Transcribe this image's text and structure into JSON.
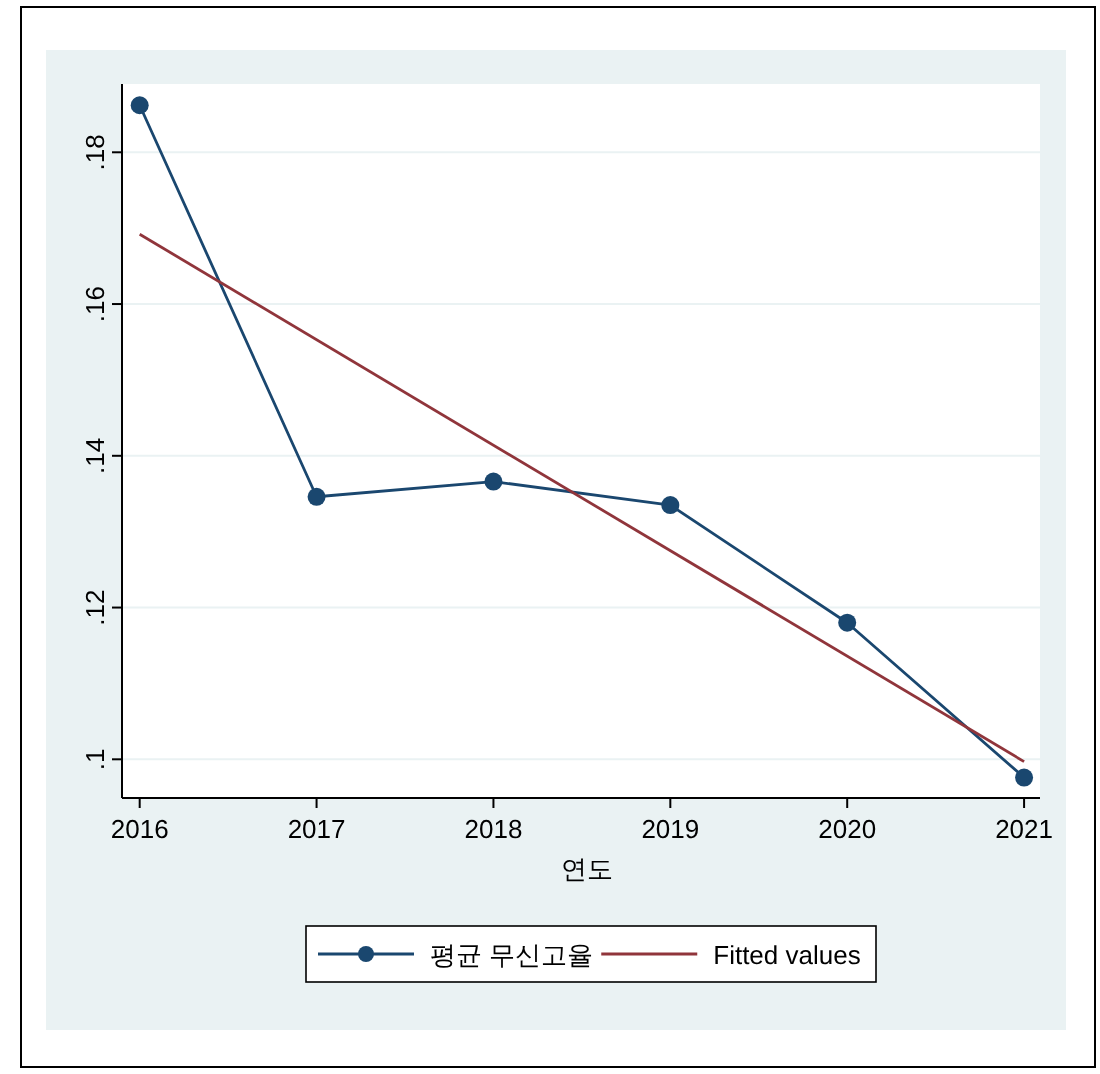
{
  "chart_data": {
    "type": "line",
    "xlabel": "연도",
    "x": [
      2016,
      2017,
      2018,
      2019,
      2020,
      2021
    ],
    "series": [
      {
        "name": "평균 무신고율",
        "color": "#1a476f",
        "values": [
          0.1862,
          0.1346,
          0.1366,
          0.1335,
          0.118,
          0.0976
        ],
        "marker": "circle"
      },
      {
        "name": "Fitted values",
        "color": "#90353b",
        "x": [
          2016,
          2021
        ],
        "values": [
          0.1692,
          0.0997
        ],
        "marker": "none"
      }
    ],
    "xlim": [
      2015.9,
      2021.09
    ],
    "ylim": [
      0.0949,
      0.189
    ],
    "xticks": [
      2016,
      2017,
      2018,
      2019,
      2020,
      2021
    ],
    "yticks": [
      {
        "value": 0.1,
        "label": ".1"
      },
      {
        "value": 0.12,
        "label": ".12"
      },
      {
        "value": 0.14,
        "label": ".14"
      },
      {
        "value": 0.16,
        "label": ".16"
      },
      {
        "value": 0.18,
        "label": ".18"
      }
    ],
    "grid": "y",
    "legend": "bottom"
  }
}
